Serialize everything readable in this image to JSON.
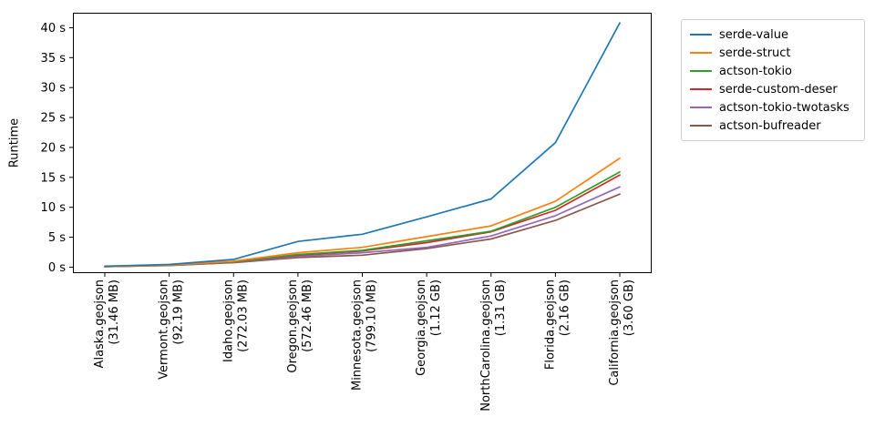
{
  "chart_data": {
    "type": "line",
    "title": "",
    "xlabel": "",
    "ylabel": "Runtime",
    "grid": false,
    "legend_position": "outside-upper-right",
    "legend_border_color": "#cccccc",
    "axis_color": "#000000",
    "ylim": [
      -1,
      42.5
    ],
    "y_ticks": [
      {
        "value": 0,
        "label": "0 s"
      },
      {
        "value": 5,
        "label": "5 s"
      },
      {
        "value": 10,
        "label": "10 s"
      },
      {
        "value": 15,
        "label": "15 s"
      },
      {
        "value": 20,
        "label": "20 s"
      },
      {
        "value": 25,
        "label": "25 s"
      },
      {
        "value": 30,
        "label": "30 s"
      },
      {
        "value": 35,
        "label": "35 s"
      },
      {
        "value": 40,
        "label": "40 s"
      }
    ],
    "categories": [
      {
        "name": "Alaska.geojson",
        "size": "(31.46 MB)"
      },
      {
        "name": "Vermont.geojson",
        "size": "(92.19 MB)"
      },
      {
        "name": "Idaho.geojson",
        "size": "(272.03 MB)"
      },
      {
        "name": "Oregon.geojson",
        "size": "(572.46 MB)"
      },
      {
        "name": "Minnesota.geojson",
        "size": "(799.10 MB)"
      },
      {
        "name": "Georgia.geojson",
        "size": "(1.12 GB)"
      },
      {
        "name": "NorthCarolina.geojson",
        "size": "(1.31 GB)"
      },
      {
        "name": "Florida.geojson",
        "size": "(2.16 GB)"
      },
      {
        "name": "California.geojson",
        "size": "(3.60 GB)"
      }
    ],
    "series": [
      {
        "name": "serde-value",
        "color": "#1f77b4",
        "values": [
          0.15,
          0.45,
          1.3,
          4.3,
          5.5,
          8.4,
          11.4,
          20.8,
          40.8
        ]
      },
      {
        "name": "serde-struct",
        "color": "#ff7f0e",
        "values": [
          0.1,
          0.35,
          1.0,
          2.4,
          3.3,
          5.1,
          6.9,
          11.0,
          18.2
        ]
      },
      {
        "name": "actson-tokio",
        "color": "#2ca02c",
        "values": [
          0.1,
          0.33,
          0.9,
          2.1,
          2.8,
          4.4,
          6.0,
          10.0,
          15.9
        ]
      },
      {
        "name": "serde-custom-deser",
        "color": "#d62728",
        "values": [
          0.1,
          0.32,
          0.88,
          2.0,
          2.7,
          4.1,
          5.9,
          9.5,
          15.4
        ]
      },
      {
        "name": "actson-tokio-twotasks",
        "color": "#9467bd",
        "values": [
          0.08,
          0.3,
          0.8,
          1.8,
          2.4,
          3.3,
          5.2,
          8.6,
          13.4
        ]
      },
      {
        "name": "actson-bufreader",
        "color": "#8c564b",
        "values": [
          0.08,
          0.28,
          0.75,
          1.6,
          2.0,
          3.1,
          4.7,
          7.8,
          12.2
        ]
      }
    ]
  }
}
